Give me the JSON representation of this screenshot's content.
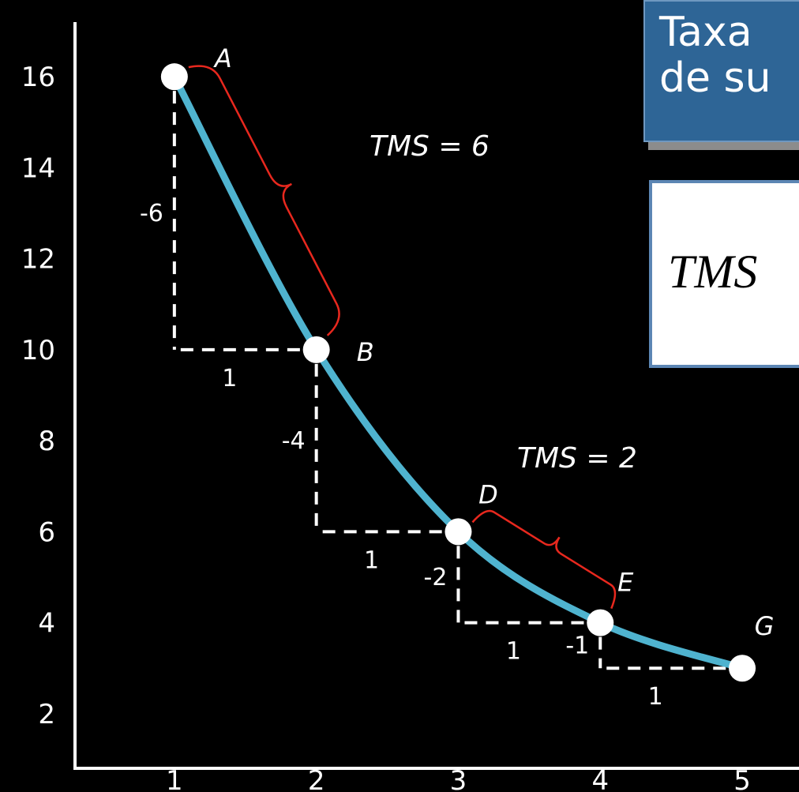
{
  "title_box": {
    "line1": "Taxa",
    "line2": "de su"
  },
  "formula_box": {
    "text": "TMS"
  },
  "colors": {
    "background": "#000000",
    "curve": "#4fb3cf",
    "brace": "#e8281e",
    "guides": "#ffffff",
    "title_box_fill": "#2e6596",
    "formula_box_border": "#5c86b4"
  },
  "chart_data": {
    "type": "line",
    "x_ticks": [
      "1",
      "2",
      "3",
      "4",
      "5"
    ],
    "y_ticks": [
      "2",
      "4",
      "6",
      "8",
      "10",
      "12",
      "14",
      "16"
    ],
    "xlim": [
      0.3,
      5.4
    ],
    "ylim": [
      0.8,
      17.2
    ],
    "grid": false,
    "points": [
      {
        "label": "A",
        "x": 1,
        "y": 16
      },
      {
        "label": "B",
        "x": 2,
        "y": 10
      },
      {
        "label": "D",
        "x": 3,
        "y": 6
      },
      {
        "label": "E",
        "x": 4,
        "y": 4
      },
      {
        "label": "G",
        "x": 5,
        "y": 3
      }
    ],
    "steps": [
      {
        "from": "A",
        "to": "B",
        "dy_label": "-6",
        "dx_label": "1"
      },
      {
        "from": "B",
        "to": "D",
        "dy_label": "-4",
        "dx_label": "1"
      },
      {
        "from": "D",
        "to": "E",
        "dy_label": "-2",
        "dx_label": "1"
      },
      {
        "from": "E",
        "to": "G",
        "dy_label": "-1",
        "dx_label": "1"
      }
    ],
    "annotations": [
      {
        "text": "TMS = 6",
        "between": [
          "A",
          "B"
        ]
      },
      {
        "text": "TMS = 2",
        "between": [
          "D",
          "E"
        ]
      }
    ]
  }
}
